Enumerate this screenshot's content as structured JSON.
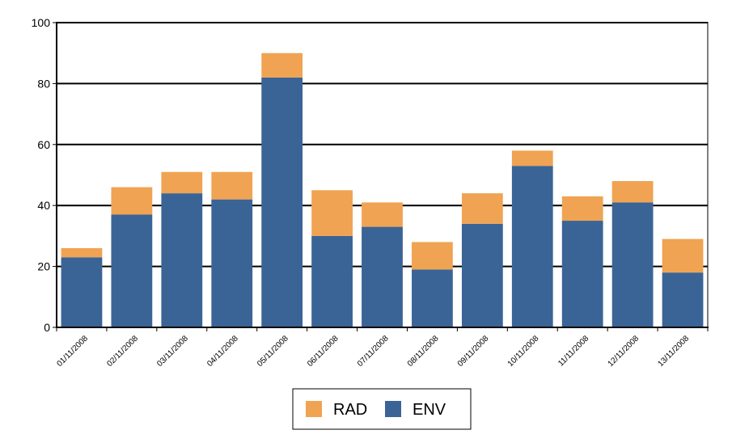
{
  "chart_data": {
    "type": "bar",
    "stacked": true,
    "categories": [
      "01/11/2008",
      "02/11/2008",
      "03/11/2008",
      "04/11/2008",
      "05/11/2008",
      "06/11/2008",
      "07/11/2008",
      "08/11/2008",
      "09/11/2008",
      "10/11/2008",
      "11/11/2008",
      "12/11/2008",
      "13/11/2008"
    ],
    "series": [
      {
        "name": "ENV",
        "color": "#3b6496",
        "values": [
          23,
          37,
          44,
          42,
          82,
          30,
          33,
          19,
          34,
          53,
          35,
          41,
          18
        ]
      },
      {
        "name": "RAD",
        "color": "#f0a352",
        "values": [
          3,
          9,
          7,
          9,
          8,
          15,
          8,
          9,
          10,
          5,
          8,
          7,
          11
        ]
      }
    ],
    "title": "",
    "xlabel": "",
    "ylabel": "",
    "ylim": [
      0,
      100
    ],
    "yticks": [
      0,
      20,
      40,
      60,
      80,
      100
    ],
    "grid": true,
    "legend_position": "bottom",
    "legend": [
      "RAD",
      "ENV"
    ]
  }
}
